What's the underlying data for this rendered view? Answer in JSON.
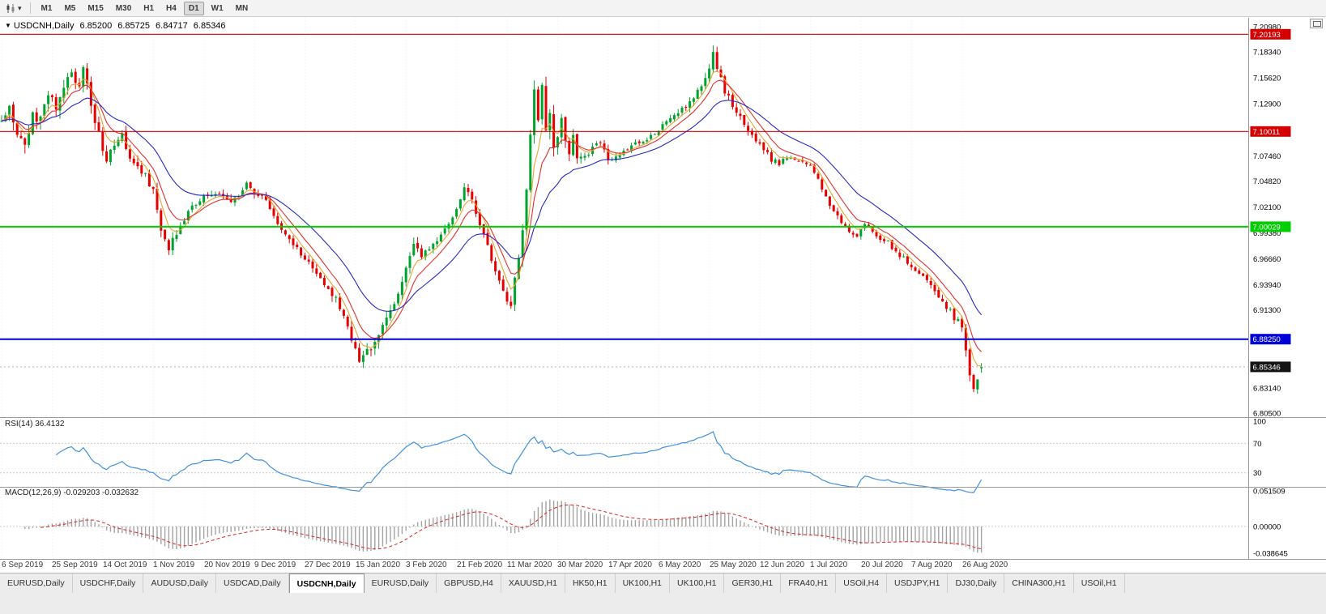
{
  "icons": {
    "collapse": "▼",
    "caret": "▾"
  },
  "toolbar": {
    "timeframes": [
      "M1",
      "M5",
      "M15",
      "M30",
      "H1",
      "H4",
      "D1",
      "W1",
      "MN"
    ],
    "active_timeframe": "D1"
  },
  "chart_header": {
    "symbol": "USDCNH,Daily",
    "open": "6.85200",
    "high": "6.85725",
    "low": "6.84717",
    "close": "6.85346"
  },
  "price_scale": {
    "ticks": [
      7.2098,
      7.1834,
      7.1562,
      7.129,
      7.0746,
      7.0482,
      7.021,
      6.9938,
      6.9666,
      6.9394,
      6.913,
      6.8314,
      6.805
    ]
  },
  "indicators": {
    "rsi": {
      "label": "RSI(14) 36.4132",
      "period": 14,
      "value": 36.4132,
      "scale_ticks": [
        100,
        70,
        30
      ],
      "level_lines": [
        70,
        30
      ]
    },
    "macd": {
      "label": "MACD(12,26,9) -0.029203 -0.032632",
      "fast": 12,
      "slow": 26,
      "signal": 9,
      "main_value": -0.029203,
      "signal_value": -0.032632,
      "scale_ticks": [
        {
          "v": 0.051509,
          "t": "0.051509"
        },
        {
          "v": 0,
          "t": "0.00000"
        },
        {
          "v": -0.038645,
          "t": "-0.038645"
        }
      ]
    }
  },
  "tabs": [
    {
      "label": "EURUSD,Daily",
      "active": false
    },
    {
      "label": "USDCHF,Daily",
      "active": false
    },
    {
      "label": "AUDUSD,Daily",
      "active": false
    },
    {
      "label": "USDCAD,Daily",
      "active": false
    },
    {
      "label": "USDCNH,Daily",
      "active": true
    },
    {
      "label": "EURUSD,Daily",
      "active": false
    },
    {
      "label": "GBPUSD,H4",
      "active": false
    },
    {
      "label": "XAUUSD,H1",
      "active": false
    },
    {
      "label": "HK50,H1",
      "active": false
    },
    {
      "label": "UK100,H1",
      "active": false
    },
    {
      "label": "UK100,H1",
      "active": false
    },
    {
      "label": "GER30,H1",
      "active": false
    },
    {
      "label": "FRA40,H1",
      "active": false
    },
    {
      "label": "USOil,H4",
      "active": false
    },
    {
      "label": "USDJPY,H1",
      "active": false
    },
    {
      "label": "DJ30,Daily",
      "active": false
    },
    {
      "label": "CHINA300,H1",
      "active": false
    },
    {
      "label": "USOil,H1",
      "active": false
    }
  ],
  "colors": {
    "bull": "#00a32e",
    "bear": "#e60000",
    "ma_fast": "#e8a532",
    "ma_mid": "#e03030",
    "ma_slow": "#2828c8",
    "rsi": "#4090dd",
    "macd_hist": "#a3a3a3",
    "macd_signal": "#dd2222",
    "price_badge": "#141414",
    "grid": "#ededed",
    "separator": "#9a9a9a"
  },
  "chart_data": {
    "type": "candlestick",
    "title": "USDCNH,Daily",
    "ylim": [
      6.805,
      7.2098
    ],
    "total_days": 253,
    "seed": 987654,
    "x_tick_labels": [
      "6 Sep 2019",
      "25 Sep 2019",
      "14 Oct 2019",
      "1 Nov 2019",
      "20 Nov 2019",
      "9 Dec 2019",
      "27 Dec 2019",
      "15 Jan 2020",
      "3 Feb 2020",
      "21 Feb 2020",
      "11 Mar 2020",
      "30 Mar 2020",
      "17 Apr 2020",
      "6 May 2020",
      "25 May 2020",
      "12 Jun 2020",
      "1 Jul 2020",
      "20 Jul 2020",
      "7 Aug 2020",
      "26 Aug 2020"
    ],
    "days_per_label": 13,
    "last_candle": {
      "open": 6.852,
      "high": 6.85725,
      "low": 6.84717,
      "close": 6.85346
    },
    "current_price": {
      "value": 6.85346,
      "label": "6.85346"
    },
    "levels": [
      {
        "price": 7.20193,
        "label": "7.20193",
        "color": "#d40000",
        "width": 1.2
      },
      {
        "price": 7.10011,
        "label": "7.10011",
        "color": "#d40000",
        "width": 1.2
      },
      {
        "price": 7.00029,
        "label": "7.00029",
        "color": "#00ce00",
        "width": 2
      },
      {
        "price": 6.8825,
        "label": "6.88250",
        "color": "#0000d8",
        "width": 2
      }
    ],
    "moving_averages": [
      {
        "period": 5,
        "color_key": "ma_fast"
      },
      {
        "period": 9,
        "color_key": "ma_mid"
      },
      {
        "period": 22,
        "color_key": "ma_slow"
      }
    ],
    "price_path_anchors": [
      [
        0,
        7.112
      ],
      [
        2,
        7.126
      ],
      [
        4,
        7.1
      ],
      [
        6,
        7.086
      ],
      [
        8,
        7.118
      ],
      [
        10,
        7.112
      ],
      [
        12,
        7.139
      ],
      [
        14,
        7.124
      ],
      [
        16,
        7.147
      ],
      [
        18,
        7.158
      ],
      [
        20,
        7.152
      ],
      [
        21,
        7.168
      ],
      [
        23,
        7.128
      ],
      [
        25,
        7.096
      ],
      [
        27,
        7.072
      ],
      [
        29,
        7.088
      ],
      [
        31,
        7.098
      ],
      [
        33,
        7.074
      ],
      [
        35,
        7.062
      ],
      [
        37,
        7.056
      ],
      [
        39,
        7.036
      ],
      [
        41,
        6.996
      ],
      [
        43,
        6.979
      ],
      [
        45,
        6.991
      ],
      [
        47,
        7.006
      ],
      [
        49,
        7.021
      ],
      [
        52,
        7.031
      ],
      [
        55,
        7.037
      ],
      [
        58,
        7.027
      ],
      [
        61,
        7.031
      ],
      [
        63,
        7.044
      ],
      [
        65,
        7.035
      ],
      [
        68,
        7.028
      ],
      [
        70,
        7.012
      ],
      [
        73,
        6.992
      ],
      [
        76,
        6.978
      ],
      [
        79,
        6.962
      ],
      [
        82,
        6.943
      ],
      [
        85,
        6.931
      ],
      [
        88,
        6.911
      ],
      [
        90,
        6.881
      ],
      [
        92,
        6.857
      ],
      [
        94,
        6.869
      ],
      [
        96,
        6.881
      ],
      [
        98,
        6.894
      ],
      [
        100,
        6.911
      ],
      [
        102,
        6.931
      ],
      [
        104,
        6.961
      ],
      [
        106,
        6.984
      ],
      [
        108,
        6.971
      ],
      [
        110,
        6.977
      ],
      [
        112,
        6.987
      ],
      [
        114,
        6.997
      ],
      [
        116,
        7.011
      ],
      [
        118,
        7.027
      ],
      [
        119,
        7.039
      ],
      [
        121,
        7.031
      ],
      [
        123,
        7.003
      ],
      [
        125,
        6.982
      ],
      [
        127,
        6.955
      ],
      [
        129,
        6.935
      ],
      [
        131,
        6.917
      ],
      [
        132,
        6.944
      ],
      [
        133,
        6.969
      ],
      [
        134,
        7.001
      ],
      [
        135,
        7.041
      ],
      [
        136,
        7.096
      ],
      [
        137,
        7.139
      ],
      [
        138,
        7.114
      ],
      [
        139,
        7.149
      ],
      [
        140,
        7.106
      ],
      [
        141,
        7.124
      ],
      [
        142,
        7.086
      ],
      [
        143,
        7.091
      ],
      [
        144,
        7.109
      ],
      [
        145,
        7.094
      ],
      [
        146,
        7.079
      ],
      [
        147,
        7.094
      ],
      [
        148,
        7.076
      ],
      [
        150,
        7.071
      ],
      [
        152,
        7.086
      ],
      [
        154,
        7.091
      ],
      [
        156,
        7.072
      ],
      [
        158,
        7.074
      ],
      [
        160,
        7.079
      ],
      [
        162,
        7.084
      ],
      [
        164,
        7.089
      ],
      [
        166,
        7.093
      ],
      [
        168,
        7.099
      ],
      [
        170,
        7.106
      ],
      [
        172,
        7.112
      ],
      [
        174,
        7.119
      ],
      [
        176,
        7.126
      ],
      [
        178,
        7.136
      ],
      [
        180,
        7.148
      ],
      [
        182,
        7.163
      ],
      [
        183,
        7.181
      ],
      [
        184,
        7.163
      ],
      [
        186,
        7.144
      ],
      [
        188,
        7.127
      ],
      [
        190,
        7.117
      ],
      [
        192,
        7.101
      ],
      [
        194,
        7.091
      ],
      [
        196,
        7.081
      ],
      [
        198,
        7.071
      ],
      [
        200,
        7.067
      ],
      [
        202,
        7.074
      ],
      [
        204,
        7.071
      ],
      [
        206,
        7.067
      ],
      [
        208,
        7.064
      ],
      [
        210,
        7.051
      ],
      [
        212,
        7.031
      ],
      [
        214,
        7.017
      ],
      [
        216,
        7.005
      ],
      [
        218,
        6.997
      ],
      [
        220,
        6.991
      ],
      [
        222,
        7.001
      ],
      [
        224,
        6.997
      ],
      [
        226,
        6.987
      ],
      [
        228,
        6.984
      ],
      [
        230,
        6.974
      ],
      [
        232,
        6.967
      ],
      [
        234,
        6.957
      ],
      [
        236,
        6.951
      ],
      [
        238,
        6.944
      ],
      [
        240,
        6.934
      ],
      [
        242,
        6.921
      ],
      [
        244,
        6.911
      ],
      [
        246,
        6.901
      ],
      [
        247,
        6.893
      ],
      [
        248,
        6.871
      ],
      [
        249,
        6.847
      ],
      [
        250,
        6.827
      ],
      [
        251,
        6.841
      ],
      [
        252,
        6.853
      ]
    ],
    "volatility_anchors": [
      [
        0,
        0.013
      ],
      [
        10,
        0.012
      ],
      [
        20,
        0.013
      ],
      [
        28,
        0.01
      ],
      [
        40,
        0.01
      ],
      [
        50,
        0.007
      ],
      [
        62,
        0.006
      ],
      [
        75,
        0.006
      ],
      [
        88,
        0.009
      ],
      [
        92,
        0.012
      ],
      [
        100,
        0.008
      ],
      [
        106,
        0.009
      ],
      [
        115,
        0.006
      ],
      [
        122,
        0.007
      ],
      [
        130,
        0.011
      ],
      [
        136,
        0.016
      ],
      [
        142,
        0.013
      ],
      [
        150,
        0.008
      ],
      [
        160,
        0.005
      ],
      [
        170,
        0.005
      ],
      [
        180,
        0.007
      ],
      [
        184,
        0.01
      ],
      [
        192,
        0.007
      ],
      [
        202,
        0.005
      ],
      [
        212,
        0.006
      ],
      [
        222,
        0.005
      ],
      [
        232,
        0.005
      ],
      [
        242,
        0.006
      ],
      [
        248,
        0.01
      ],
      [
        251,
        0.011
      ],
      [
        252,
        0.006
      ]
    ]
  }
}
